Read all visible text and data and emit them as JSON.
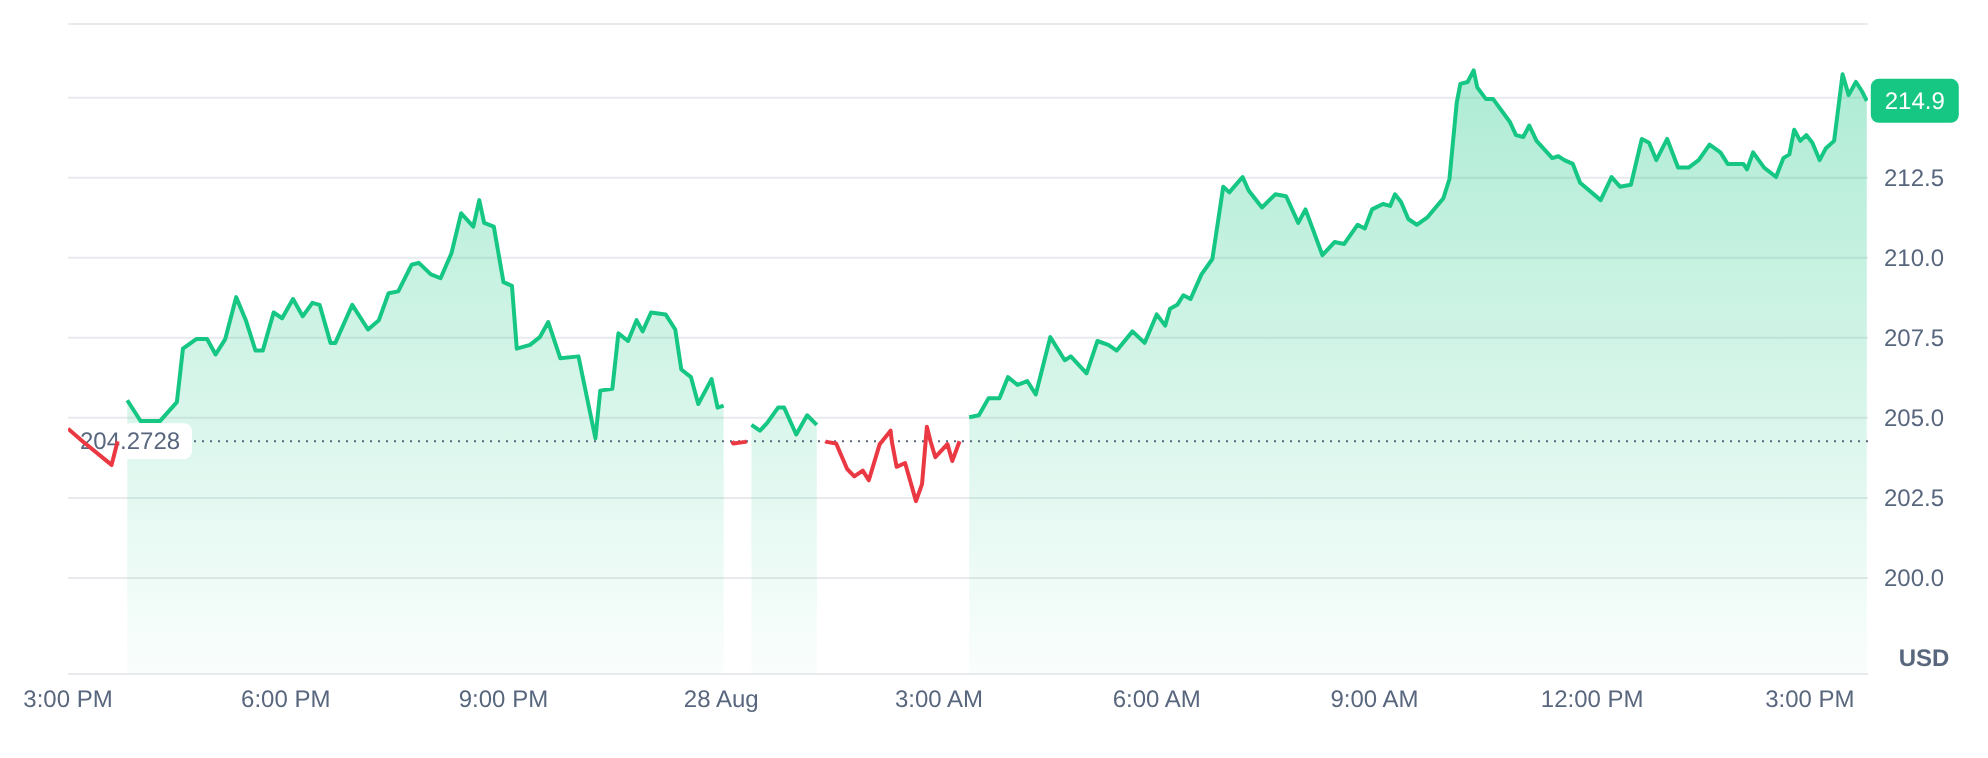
{
  "chart_data": {
    "type": "area",
    "ylabel": "USD",
    "x": [
      "--08-27T15:49",
      "--08-27T16:00",
      "--08-27T16:16",
      "--08-27T16:30",
      "--08-27T16:35",
      "--08-27T16:46",
      "--08-27T16:55",
      "--08-27T17:02",
      "--08-27T17:10",
      "--08-27T17:19",
      "--08-27T17:27",
      "--08-27T17:35",
      "--08-27T17:41",
      "--08-27T17:50",
      "--08-27T17:57",
      "--08-27T18:06",
      "--08-27T18:14",
      "--08-27T18:22",
      "--08-27T18:28",
      "--08-27T18:37",
      "--08-27T18:41",
      "--08-27T18:55",
      "--08-27T19:08",
      "--08-27T19:17",
      "--08-27T19:25",
      "--08-27T19:33",
      "--08-27T19:44",
      "--08-27T19:50",
      "--08-27T20:00",
      "--08-27T20:08",
      "--08-27T20:17",
      "--08-27T20:25",
      "--08-27T20:35",
      "--08-27T20:40",
      "--08-27T20:44",
      "--08-27T20:52",
      "--08-27T21:00",
      "--08-27T21:07",
      "--08-27T21:11",
      "--08-27T21:22",
      "--08-27T21:30",
      "--08-27T21:37",
      "--08-27T21:47",
      "--08-27T22:02",
      "--08-27T22:16",
      "--08-27T22:20",
      "--08-27T22:30",
      "--08-27T22:35",
      "--08-27T22:43",
      "--08-27T22:50",
      "--08-27T22:55",
      "--08-27T23:02",
      "--08-27T23:14",
      "--08-27T23:22",
      "--08-27T23:27",
      "--08-27T23:35",
      "--08-27T23:41",
      "--08-27T23:52",
      "--08-27T23:57",
      "--08-28T00:02",
      "--08-28T00:09",
      "--08-28T00:10",
      "--08-28T00:20",
      "--08-28T00:21",
      "--08-28T00:25",
      "--08-28T00:32",
      "--08-28T00:38",
      "--08-28T00:47",
      "--08-28T00:52",
      "--08-28T01:02",
      "--08-28T01:11",
      "--08-28T01:19",
      "--08-28T01:26",
      "--08-28T01:27",
      "--08-28T01:35",
      "--08-28T01:44",
      "--08-28T01:50",
      "--08-28T01:57",
      "--08-28T02:02",
      "--08-28T02:11",
      "--08-28T02:13",
      "--08-28T02:20",
      "--08-28T02:21",
      "--08-28T02:25",
      "--08-28T02:32",
      "--08-28T02:41",
      "--08-28T02:46",
      "--08-28T02:49",
      "--08-28T02:50",
      "--08-28T02:53",
      "--08-28T02:57",
      "--08-28T03:07",
      "--08-28T03:11",
      "--08-28T03:17",
      "--08-28T03:25",
      "--08-28T03:33",
      "--08-28T03:41",
      "--08-28T03:50",
      "--08-28T03:57",
      "--08-28T04:05",
      "--08-28T04:13",
      "--08-28T04:20",
      "--08-28T04:32",
      "--08-28T04:44",
      "--08-28T04:49",
      "--08-28T05:02",
      "--08-28T05:11",
      "--08-28T05:20",
      "--08-28T05:27",
      "--08-28T05:40",
      "--08-28T05:50",
      "--08-28T06:00",
      "--08-28T06:07",
      "--08-28T06:11",
      "--08-28T06:17",
      "--08-28T06:22",
      "--08-28T06:28",
      "--08-28T06:37",
      "--08-28T06:46",
      "--08-28T06:55",
      "--08-28T07:00",
      "--08-28T07:11",
      "--08-28T07:16",
      "--08-28T07:27",
      "--08-28T07:38",
      "--08-28T07:47",
      "--08-28T07:57",
      "--08-28T08:03",
      "--08-28T08:17",
      "--08-28T08:27",
      "--08-28T08:35",
      "--08-28T08:46",
      "--08-28T08:52",
      "--08-28T08:58",
      "--08-28T09:07",
      "--08-28T09:13",
      "--08-28T09:17",
      "--08-28T09:22",
      "--08-28T09:28",
      "--08-28T09:35",
      "--08-28T09:44",
      "--08-28T09:57",
      "--08-28T10:02",
      "--08-28T10:08",
      "--08-28T10:11",
      "--08-28T10:17",
      "--08-28T10:22",
      "--08-28T10:25",
      "--08-28T10:32",
      "--08-28T10:38",
      "--08-28T10:52",
      "--08-28T10:57",
      "--08-28T11:03",
      "--08-28T11:08",
      "--08-28T11:14",
      "--08-28T11:27",
      "--08-28T11:32",
      "--08-28T11:37",
      "--08-28T11:44",
      "--08-28T11:50",
      "--08-28T12:07",
      "--08-28T12:16",
      "--08-28T12:23",
      "--08-28T12:32",
      "--08-28T12:41",
      "--08-28T12:47",
      "--08-28T12:53",
      "--08-28T13:02",
      "--08-28T13:11",
      "--08-28T13:20",
      "--08-28T13:28",
      "--08-28T13:37",
      "--08-28T13:46",
      "--08-28T13:52",
      "--08-28T14:05",
      "--08-28T14:08",
      "--08-28T14:13",
      "--08-28T14:22",
      "--08-28T14:32",
      "--08-28T14:38",
      "--08-28T14:43",
      "--08-28T14:47",
      "--08-28T14:52",
      "--08-28T14:57",
      "--08-28T15:02",
      "--08-28T15:08",
      "--08-28T15:13",
      "--08-28T15:20",
      "--08-28T15:27",
      "--08-28T15:32",
      "--08-28T15:38",
      "--08-28T15:43",
      "--08-28T15:47"
    ],
    "series": [
      {
        "color": "#16c784",
        "values": [
          205.55,
          204.9,
          204.9,
          205.49,
          207.16,
          207.46,
          207.46,
          206.98,
          207.46,
          208.77,
          208.05,
          207.1,
          207.1,
          208.29,
          208.11,
          208.71,
          208.17,
          208.59,
          208.53,
          207.34,
          207.34,
          208.53,
          207.76,
          208.05,
          208.89,
          208.95,
          209.78,
          209.84,
          209.48,
          209.36,
          210.14,
          211.39,
          210.97,
          211.8,
          211.09,
          210.97,
          209.24,
          209.12,
          207.16,
          207.28,
          207.52,
          207.99,
          206.86,
          206.92,
          204.36,
          205.85,
          205.91,
          207.64,
          207.4,
          208.05,
          207.7,
          208.29,
          208.23,
          207.76,
          206.51,
          206.27,
          205.43,
          206.21,
          205.32,
          205.38,
          null,
          null,
          null,
          null,
          204.78,
          204.6,
          204.84,
          205.32,
          205.32,
          204.48,
          205.08,
          204.78,
          null,
          null,
          null,
          null,
          null,
          null,
          null,
          null,
          null,
          null,
          null,
          null,
          null,
          null,
          null,
          null,
          null,
          null,
          null,
          null,
          null,
          null,
          205.02,
          205.08,
          205.61,
          205.61,
          206.27,
          206.03,
          206.15,
          205.73,
          207.52,
          206.8,
          206.92,
          206.39,
          207.4,
          207.28,
          207.1,
          207.7,
          207.34,
          208.23,
          207.88,
          208.41,
          208.53,
          208.83,
          208.71,
          209.48,
          209.96,
          212.22,
          212.04,
          212.52,
          212.1,
          211.57,
          211.98,
          211.92,
          211.09,
          211.51,
          210.08,
          210.49,
          210.43,
          211.03,
          210.91,
          211.51,
          211.68,
          211.62,
          211.98,
          211.74,
          211.21,
          211.03,
          211.27,
          211.86,
          212.46,
          214.84,
          215.43,
          215.49,
          215.85,
          215.32,
          214.96,
          214.96,
          214.24,
          213.83,
          213.77,
          214.13,
          213.65,
          213.11,
          213.17,
          213.05,
          212.93,
          212.34,
          211.8,
          212.52,
          212.22,
          212.28,
          213.71,
          213.59,
          213.05,
          213.71,
          212.82,
          212.82,
          213.05,
          213.53,
          213.29,
          212.93,
          212.93,
          212.76,
          213.29,
          212.82,
          212.52,
          213.11,
          213.23,
          214.0,
          213.65,
          213.83,
          213.59,
          213.05,
          213.41,
          213.65,
          215.73,
          215.08,
          215.49,
          215.2,
          214.9
        ]
      },
      {
        "type": "line",
        "color": "#ea3943",
        "x": [
          "--08-27T15:00",
          "--08-27T15:12",
          "--08-27T15:36",
          "--08-27T15:41",
          "--08-27T16:00",
          "--08-28T00:09",
          "--08-28T00:10",
          "--08-28T00:20",
          "--08-28T00:21",
          "--08-28T00:32",
          "--08-28T01:26",
          "--08-28T01:27",
          "--08-28T01:35",
          "--08-28T01:44",
          "--08-28T01:50",
          "--08-28T01:57",
          "--08-28T02:02",
          "--08-28T02:11",
          "--08-28T02:13",
          "--08-28T02:20",
          "--08-28T02:21",
          "--08-28T02:25",
          "--08-28T02:32",
          "--08-28T02:41",
          "--08-28T02:46",
          "--08-28T02:49",
          "--08-28T02:50",
          "--08-28T02:53",
          "--08-28T02:57",
          "--08-28T03:07",
          "--08-28T03:11",
          "--08-28T03:17"
        ],
        "values": [
          204.66,
          204.27,
          203.53,
          204.27,
          null,
          204.27,
          204.2,
          204.25,
          204.27,
          null,
          204.27,
          204.25,
          204.2,
          203.41,
          203.17,
          203.35,
          203.05,
          204.18,
          204.27,
          204.6,
          204.27,
          203.47,
          203.59,
          202.4,
          202.93,
          204.27,
          204.72,
          204.27,
          203.77,
          204.18,
          203.65,
          204.27
        ]
      }
    ],
    "xlim": [
      "--08-27T15:00",
      "--08-28T15:48"
    ],
    "xticks": [
      {
        "value": "--08-27T15:00",
        "label": "3:00 PM"
      },
      {
        "value": "--08-27T18:00",
        "label": "6:00 PM"
      },
      {
        "value": "--08-27T21:00",
        "label": "9:00 PM"
      },
      {
        "value": "--08-28T00:00",
        "label": "28 Aug"
      },
      {
        "value": "--08-28T03:00",
        "label": "3:00 AM"
      },
      {
        "value": "--08-28T06:00",
        "label": "6:00 AM"
      },
      {
        "value": "--08-28T09:00",
        "label": "9:00 AM"
      },
      {
        "value": "--08-28T12:00",
        "label": "12:00 PM"
      },
      {
        "value": "--08-28T15:00",
        "label": "3:00 PM"
      }
    ],
    "ylim": [
      197,
      217.3
    ],
    "yticks": [
      {
        "value": 200,
        "label": "200.0"
      },
      {
        "value": 202.5,
        "label": "202.5"
      },
      {
        "value": 205,
        "label": "205.0"
      },
      {
        "value": 207.5,
        "label": "207.5"
      },
      {
        "value": 210,
        "label": "210.0"
      },
      {
        "value": 212.5,
        "label": "212.5"
      },
      {
        "value": 215,
        "label": null
      }
    ],
    "grid": "y",
    "marker": "none",
    "ref_lines": [
      {
        "axis": "y",
        "value": 204.2728,
        "label": "204.2728",
        "line_style": "dotted",
        "color": "#58667e"
      }
    ],
    "annotations": [
      {
        "text": "214.9",
        "x": "--08-28T15:47",
        "y": 214.9
      }
    ]
  }
}
